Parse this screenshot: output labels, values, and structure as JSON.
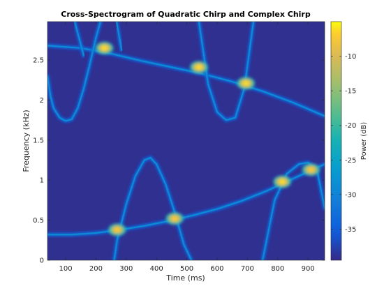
{
  "chart_data": {
    "type": "heatmap",
    "title": "Cross-Spectrogram of Quadratic Chirp and Complex Chirp",
    "xlabel": "Time (ms)",
    "ylabel": "Frequency (kHz)",
    "xlim": [
      40,
      955
    ],
    "ylim": [
      0,
      2.98
    ],
    "x_ticks": [
      100,
      200,
      300,
      400,
      500,
      600,
      700,
      800,
      900
    ],
    "x_tick_labels": [
      "100",
      "200",
      "300",
      "400",
      "500",
      "600",
      "700",
      "800",
      "900"
    ],
    "y_ticks": [
      0,
      0.5,
      1,
      1.5,
      2,
      2.5
    ],
    "y_tick_labels": [
      "0",
      "0.5",
      "1",
      "1.5",
      "2",
      "2.5"
    ],
    "colorbar": {
      "label": "Power (dB)",
      "range": [
        -39.5,
        -5
      ],
      "ticks": [
        -35,
        -30,
        -25,
        -20,
        -15,
        -10
      ],
      "tick_labels": [
        "-35",
        "-30",
        "-25",
        "-20",
        "-15",
        "-10"
      ],
      "colormap": "parula"
    },
    "background_db": -39,
    "ridges": [
      {
        "x": [
          40,
          150,
          250,
          350,
          450,
          550,
          650,
          750,
          850,
          955
        ],
        "y": [
          2.68,
          2.65,
          2.58,
          2.49,
          2.41,
          2.33,
          2.23,
          2.11,
          1.97,
          1.8
        ],
        "db": -31
      },
      {
        "x": [
          40,
          120,
          200,
          280,
          360,
          440,
          520,
          600,
          680,
          760,
          840,
          920,
          955
        ],
        "y": [
          0.32,
          0.32,
          0.34,
          0.38,
          0.43,
          0.49,
          0.56,
          0.64,
          0.74,
          0.86,
          1.0,
          1.14,
          1.2
        ],
        "db": -31
      },
      {
        "x": [
          40,
          50,
          60,
          80,
          100,
          120,
          140,
          160,
          180,
          200,
          215
        ],
        "y": [
          2.3,
          2.05,
          1.9,
          1.78,
          1.74,
          1.76,
          1.9,
          2.15,
          2.45,
          2.78,
          2.98
        ],
        "db": -31
      },
      {
        "x": [
          260,
          270,
          300,
          330,
          360,
          380,
          400,
          430,
          460,
          490,
          515
        ],
        "y": [
          0,
          0.25,
          0.7,
          1.05,
          1.25,
          1.28,
          1.2,
          0.95,
          0.6,
          0.2,
          0
        ],
        "db": -31
      },
      {
        "x": [
          540,
          570,
          600,
          630,
          660,
          690,
          720
        ],
        "y": [
          2.98,
          2.2,
          1.85,
          1.75,
          1.78,
          2.15,
          2.98
        ],
        "db": -31
      },
      {
        "x": [
          750,
          790,
          830,
          870,
          900,
          930,
          955
        ],
        "y": [
          0,
          0.75,
          1.08,
          1.2,
          1.22,
          1.12,
          0.65
        ],
        "db": -31
      },
      {
        "x": [
          130,
          160
        ],
        "y": [
          2.98,
          2.55
        ],
        "db": -31
      },
      {
        "x": [
          268,
          285
        ],
        "y": [
          2.98,
          2.62
        ],
        "db": -31
      }
    ],
    "peaks": [
      {
        "x": 228,
        "y": 2.65,
        "db": -6
      },
      {
        "x": 540,
        "y": 2.41,
        "db": -6
      },
      {
        "x": 695,
        "y": 2.21,
        "db": -6
      },
      {
        "x": 270,
        "y": 0.38,
        "db": -7
      },
      {
        "x": 460,
        "y": 0.52,
        "db": -7
      },
      {
        "x": 815,
        "y": 0.98,
        "db": -6
      },
      {
        "x": 910,
        "y": 1.13,
        "db": -7
      }
    ]
  }
}
